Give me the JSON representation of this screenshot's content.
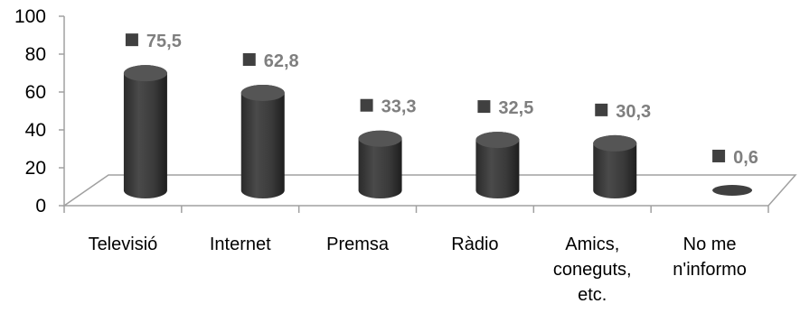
{
  "chart_data": {
    "type": "bar",
    "style": "3d-cylinder",
    "categories": [
      "Televisió",
      "Internet",
      "Premsa",
      "Ràdio",
      "Amics, coneguts, etc.",
      "No me n'informo"
    ],
    "category_lines": [
      [
        "Televisió"
      ],
      [
        "Internet"
      ],
      [
        "Premsa"
      ],
      [
        "Ràdio"
      ],
      [
        "Amics,",
        "coneguts,",
        "etc."
      ],
      [
        "No me",
        "n'informo"
      ]
    ],
    "values": [
      75.5,
      62.8,
      33.3,
      32.5,
      30.3,
      0.6
    ],
    "value_labels": [
      "75,5",
      "62,8",
      "33,3",
      "32,5",
      "30,3",
      "0,6"
    ],
    "yticks": [
      "0",
      "20",
      "40",
      "60",
      "80",
      "100"
    ],
    "ylim": [
      0,
      100
    ],
    "grid": false,
    "legend": "none",
    "colors": {
      "bar": "#404040",
      "bar_top": "#555555",
      "marker": "#404040",
      "label": "#7f7f7f",
      "axis": "#a0a0a0"
    }
  }
}
